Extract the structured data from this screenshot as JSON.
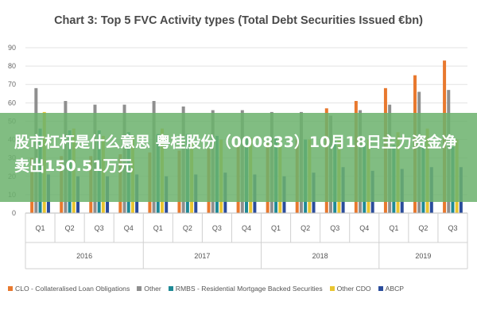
{
  "chart_data": {
    "type": "bar",
    "title": "Chart 3: Top 5 FVC Activity types (Total Debt Securities Issued €bn)",
    "xlabel": "",
    "ylabel": "",
    "ylim": [
      0,
      90
    ],
    "yticks": [
      0,
      10,
      20,
      30,
      40,
      50,
      60,
      70,
      80,
      90
    ],
    "grid": true,
    "legend_position": "bottom",
    "categories": [
      "Q1",
      "Q2",
      "Q3",
      "Q4",
      "Q1",
      "Q2",
      "Q3",
      "Q4",
      "Q1",
      "Q2",
      "Q3",
      "Q4",
      "Q1",
      "Q2",
      "Q3"
    ],
    "year_groups": [
      {
        "label": "2016",
        "count": 4
      },
      {
        "label": "2017",
        "count": 4
      },
      {
        "label": "2018",
        "count": 4
      },
      {
        "label": "2019",
        "count": 3
      }
    ],
    "series": [
      {
        "name": "CLO - Collateralised Loan Obligations",
        "color": "#e8792f",
        "values": [
          30,
          31,
          31,
          32,
          33,
          34,
          35,
          36,
          38,
          40,
          57,
          61,
          68,
          75,
          83
        ]
      },
      {
        "name": "Other",
        "color": "#8f8f8f",
        "values": [
          68,
          61,
          59,
          59,
          61,
          58,
          56,
          56,
          55,
          55,
          53,
          56,
          59,
          66,
          67
        ]
      },
      {
        "name": "RMBS - Residential Mortgage Backed Securities",
        "color": "#1f8a96",
        "values": [
          46,
          45,
          45,
          44,
          43,
          43,
          42,
          41,
          42,
          40,
          39,
          38,
          37,
          36,
          36
        ]
      },
      {
        "name": "Other CDO",
        "color": "#e9c530",
        "values": [
          55,
          46,
          42,
          42,
          46,
          40,
          40,
          41,
          40,
          40,
          40,
          40,
          44,
          46,
          40
        ]
      },
      {
        "name": "ABCP",
        "color": "#2b4d9c",
        "values": [
          21,
          20,
          20,
          21,
          20,
          21,
          22,
          21,
          20,
          22,
          25,
          23,
          24,
          25,
          25
        ]
      }
    ]
  },
  "overlay": {
    "text": "股市杠杆是什么意思 粤桂股份（000833）10月18日主力资金净卖出150.51万元"
  }
}
